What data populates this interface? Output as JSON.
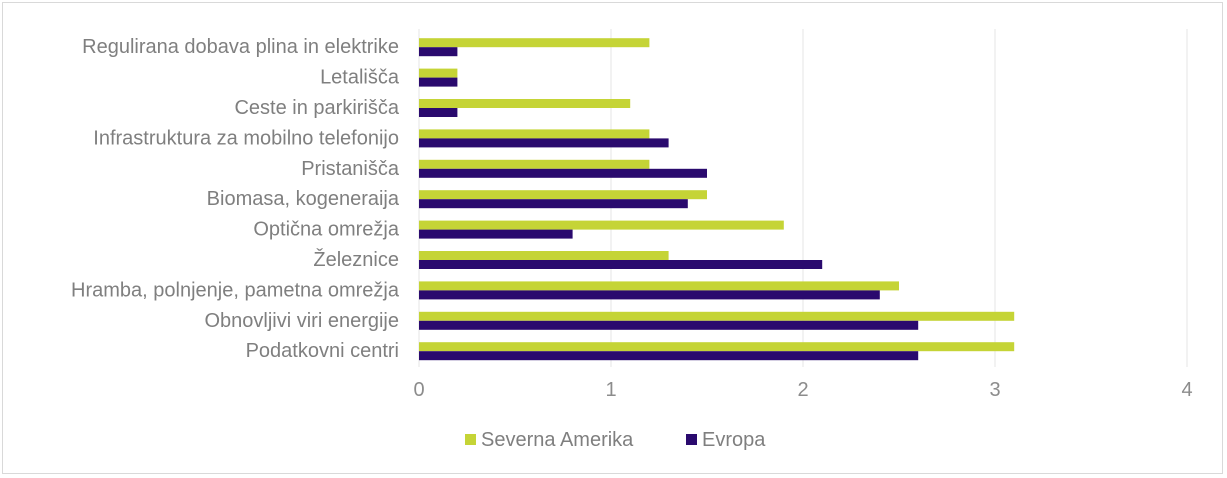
{
  "chart_data": {
    "type": "bar",
    "orientation": "horizontal",
    "title": "",
    "xlabel": "",
    "ylabel": "",
    "xlim": [
      0,
      4
    ],
    "ticks": [
      "0",
      "1",
      "2",
      "3",
      "4"
    ],
    "grid": true,
    "legend_position": "bottom",
    "categories": [
      "Regulirana dobava plina in elektrike",
      "Letališča",
      "Ceste in parkirišča",
      "Infrastruktura za mobilno telefonijo",
      "Pristanišča",
      "Biomasa, kogeneraija",
      "Optična omrežja",
      "Železnice",
      "Hramba, polnjenje, pametna omrežja",
      "Obnovljivi viri energije",
      "Podatkovni centri"
    ],
    "series": [
      {
        "name": "Severna Amerika",
        "color": "#c5d436",
        "values": [
          1.2,
          0.2,
          1.1,
          1.2,
          1.2,
          1.5,
          1.9,
          1.3,
          2.5,
          3.1,
          3.1
        ]
      },
      {
        "name": "Evropa",
        "color": "#2a0a6e",
        "values": [
          0.2,
          0.2,
          0.2,
          1.3,
          1.5,
          1.4,
          0.8,
          2.1,
          2.4,
          2.6,
          2.6
        ]
      }
    ]
  }
}
